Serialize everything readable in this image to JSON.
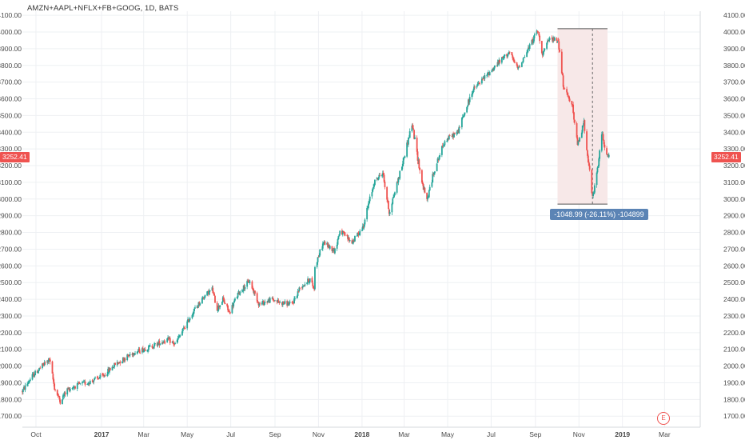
{
  "title": "AMZN+AAPL+NFLX+FB+GOOG, 1D, BATS",
  "colors": {
    "up": "#26a69a",
    "down": "#ef5350",
    "grid": "#eef0f3",
    "measure_fill": "#f7e8e8",
    "measure_label": "#5b84b5"
  },
  "last_price_label": "3252.41",
  "measurement_label": "-1048.99 (-26.11%) -104899",
  "earnings_marker": "E",
  "chart_data": {
    "type": "candlestick",
    "title": "AMZN+AAPL+NFLX+FB+GOOG, 1D, BATS",
    "interval": "1D",
    "ylim": [
      1650,
      4120
    ],
    "y_ticks": [
      "4100.00",
      "4000.00",
      "3900.00",
      "3800.00",
      "3700.00",
      "3600.00",
      "3500.00",
      "3400.00",
      "3300.00",
      "3200.00",
      "3100.00",
      "3000.00",
      "2900.00",
      "2800.00",
      "2700.00",
      "2600.00",
      "2500.00",
      "2400.00",
      "2300.00",
      "2200.00",
      "2100.00",
      "2000.00",
      "1900.00",
      "1800.00",
      "1700.00"
    ],
    "x_ticks": [
      "Oct",
      "2017",
      "Mar",
      "May",
      "Jul",
      "Sep",
      "Nov",
      "2018",
      "Mar",
      "May",
      "Jul",
      "Sep",
      "Nov",
      "2019",
      "Mar"
    ],
    "x_range": [
      "2016-09-12",
      "2019-04-20"
    ],
    "grid": true,
    "last_price": 3252.41,
    "path": [
      [
        "2016-09-12",
        1850
      ],
      [
        "2016-09-26",
        1940
      ],
      [
        "2016-10-12",
        2010
      ],
      [
        "2016-10-20",
        2040
      ],
      [
        "2016-10-27",
        1870
      ],
      [
        "2016-11-04",
        1790
      ],
      [
        "2016-11-14",
        1860
      ],
      [
        "2016-12-01",
        1890
      ],
      [
        "2016-12-12",
        1900
      ],
      [
        "2017-01-03",
        1940
      ],
      [
        "2017-01-20",
        2010
      ],
      [
        "2017-02-14",
        2080
      ],
      [
        "2017-03-08",
        2110
      ],
      [
        "2017-04-03",
        2160
      ],
      [
        "2017-04-14",
        2130
      ],
      [
        "2017-05-01",
        2260
      ],
      [
        "2017-05-10",
        2330
      ],
      [
        "2017-05-25",
        2420
      ],
      [
        "2017-06-05",
        2460
      ],
      [
        "2017-06-12",
        2340
      ],
      [
        "2017-06-20",
        2400
      ],
      [
        "2017-06-29",
        2320
      ],
      [
        "2017-07-11",
        2430
      ],
      [
        "2017-07-27",
        2510
      ],
      [
        "2017-08-10",
        2370
      ],
      [
        "2017-08-28",
        2400
      ],
      [
        "2017-09-08",
        2380
      ],
      [
        "2017-09-25",
        2370
      ],
      [
        "2017-10-06",
        2470
      ],
      [
        "2017-10-20",
        2520
      ],
      [
        "2017-10-26",
        2460
      ],
      [
        "2017-10-27",
        2600
      ],
      [
        "2017-11-08",
        2740
      ],
      [
        "2017-11-24",
        2690
      ],
      [
        "2017-12-01",
        2810
      ],
      [
        "2017-12-18",
        2740
      ],
      [
        "2018-01-02",
        2830
      ],
      [
        "2018-01-18",
        3100
      ],
      [
        "2018-01-30",
        3160
      ],
      [
        "2018-02-08",
        2920
      ],
      [
        "2018-02-26",
        3200
      ],
      [
        "2018-03-12",
        3450
      ],
      [
        "2018-03-26",
        3100
      ],
      [
        "2018-04-02",
        2990
      ],
      [
        "2018-04-12",
        3170
      ],
      [
        "2018-04-27",
        3350
      ],
      [
        "2018-05-15",
        3400
      ],
      [
        "2018-06-05",
        3650
      ],
      [
        "2018-06-20",
        3720
      ],
      [
        "2018-07-10",
        3810
      ],
      [
        "2018-07-26",
        3880
      ],
      [
        "2018-08-07",
        3780
      ],
      [
        "2018-08-20",
        3880
      ],
      [
        "2018-09-04",
        4010
      ],
      [
        "2018-09-11",
        3870
      ],
      [
        "2018-09-21",
        3960
      ],
      [
        "2018-10-03",
        3950
      ],
      [
        "2018-10-11",
        3650
      ],
      [
        "2018-10-22",
        3580
      ],
      [
        "2018-10-30",
        3320
      ],
      [
        "2018-11-08",
        3460
      ],
      [
        "2018-11-15",
        3200
      ],
      [
        "2018-11-20",
        3000
      ],
      [
        "2018-11-28",
        3200
      ],
      [
        "2018-12-03",
        3400
      ],
      [
        "2018-12-10",
        3260
      ],
      [
        "2018-12-14",
        3252.41
      ]
    ],
    "measurement": {
      "from_date": "2018-10-02",
      "to_date": "2018-12-11",
      "top": 4020,
      "bottom": 2970,
      "change": -1048.99,
      "change_pct": -26.11,
      "change_ticks": -104899
    }
  }
}
